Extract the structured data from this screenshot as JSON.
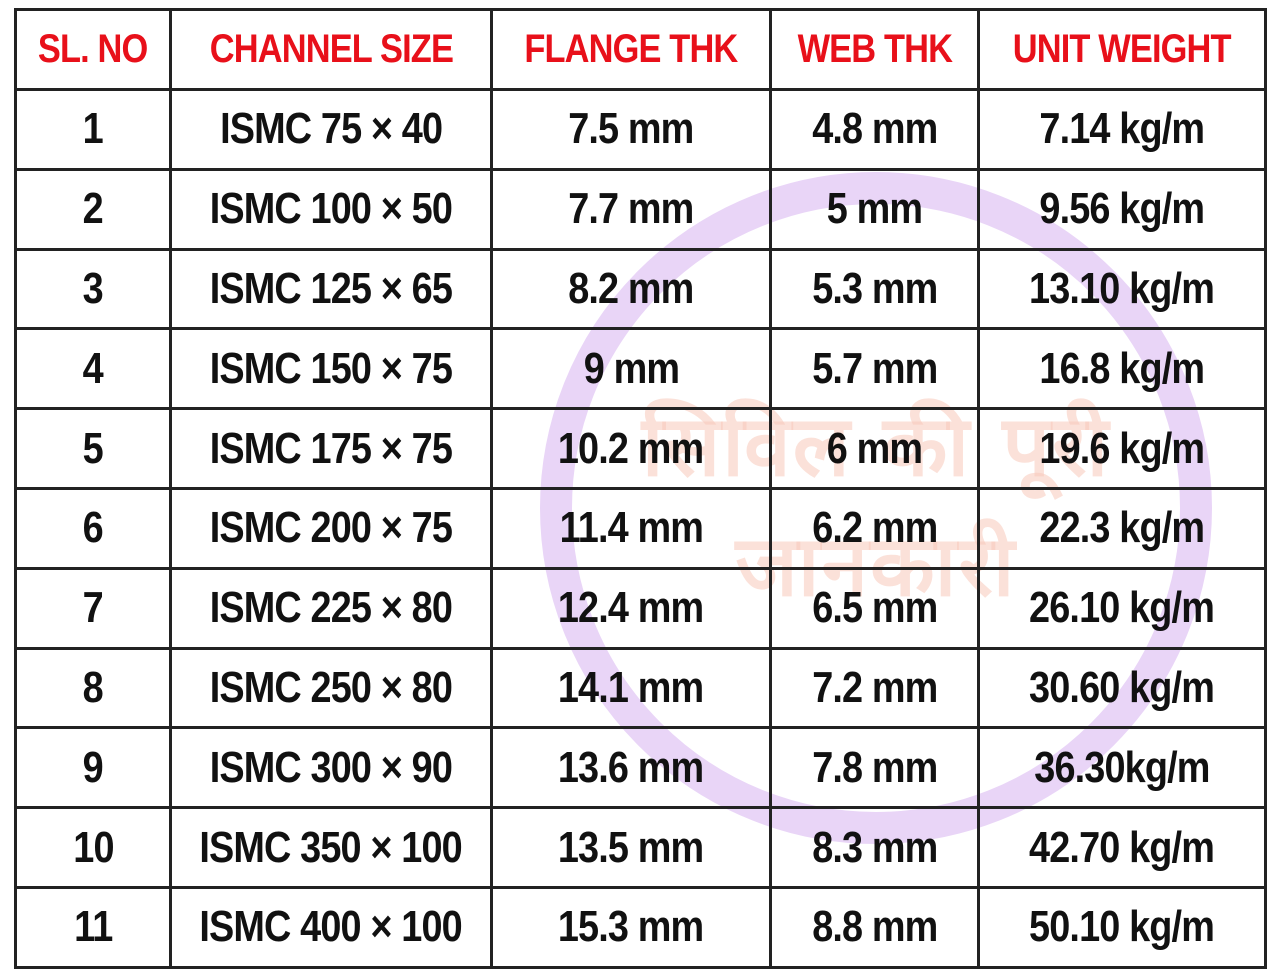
{
  "table": {
    "headers": [
      "SL. NO",
      "CHANNEL SIZE",
      "FLANGE THK",
      "WEB THK",
      "UNIT WEIGHT"
    ],
    "rows": [
      [
        "1",
        "ISMC  75 × 40",
        "7.5 mm",
        "4.8 mm",
        "7.14 kg/m"
      ],
      [
        "2",
        "ISMC  100 × 50",
        "7.7 mm",
        "5 mm",
        "9.56 kg/m"
      ],
      [
        "3",
        "ISMC  125 × 65",
        "8.2 mm",
        "5.3 mm",
        "13.10 kg/m"
      ],
      [
        "4",
        "ISMC  150 × 75",
        "9 mm",
        "5.7 mm",
        "16.8 kg/m"
      ],
      [
        "5",
        "ISMC  175 × 75",
        "10.2 mm",
        "6 mm",
        "19.6 kg/m"
      ],
      [
        "6",
        "ISMC  200 × 75",
        "11.4 mm",
        "6.2 mm",
        "22.3 kg/m"
      ],
      [
        "7",
        "ISMC  225 × 80",
        "12.4 mm",
        "6.5 mm",
        "26.10 kg/m"
      ],
      [
        "8",
        "ISMC  250 × 80",
        "14.1 mm",
        "7.2 mm",
        "30.60 kg/m"
      ],
      [
        "9",
        "ISMC  300 × 90",
        "13.6 mm",
        "7.8 mm",
        "36.30kg/m"
      ],
      [
        "10",
        "ISMC  350 × 100",
        "13.5 mm",
        "8.3 mm",
        "42.70 kg/m"
      ],
      [
        "11",
        "ISMC  400 × 100",
        "15.3 mm",
        "8.8 mm",
        "50.10 kg/m"
      ]
    ]
  },
  "watermark": {
    "line1": "सिविल की पूरी",
    "line2": "जानकारी",
    "ring_color": "#e9d5f7",
    "text_color": "#f8c8b9"
  },
  "colors": {
    "header_text": "#e8101a",
    "body_text": "#111111",
    "grid": "#222222"
  }
}
